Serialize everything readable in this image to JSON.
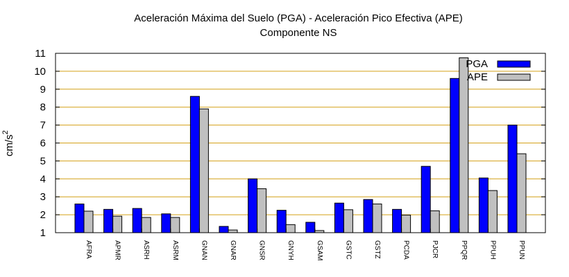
{
  "chart_data": {
    "type": "bar",
    "title": "Aceleración Máxima del Suelo (PGA) -  Aceleración Pico Efectiva (APE)",
    "subtitle": "Componente NS",
    "xlabel": "",
    "ylabel": "cm/s",
    "ylabel_superscript": "2",
    "ylim": [
      1,
      11
    ],
    "yticks": [
      "1",
      "2",
      "3",
      "4",
      "5",
      "6",
      "7",
      "8",
      "9",
      "10",
      "11"
    ],
    "grid": true,
    "legend_position": "top-right",
    "categories": [
      "AFRA",
      "APMR",
      "ASRH",
      "ASRM",
      "GNAN",
      "GNAR",
      "GNSR",
      "GNYH",
      "GSAM",
      "GSTC",
      "GSTZ",
      "PCDA",
      "PJCR",
      "PPQR",
      "PPUH",
      "PPUN"
    ],
    "series": [
      {
        "name": "PGA",
        "color": "#0000ff",
        "values": [
          2.6,
          2.3,
          2.35,
          2.05,
          8.6,
          1.35,
          4.0,
          2.25,
          1.58,
          2.65,
          2.85,
          2.3,
          4.7,
          9.6,
          4.05,
          7.0
        ]
      },
      {
        "name": "APE",
        "color": "#c0c0c0",
        "values": [
          2.2,
          1.92,
          1.85,
          1.85,
          7.9,
          1.15,
          3.45,
          1.45,
          1.12,
          2.28,
          2.6,
          1.98,
          2.22,
          10.75,
          3.35,
          5.4
        ]
      }
    ],
    "grid_color": "#d4a017"
  }
}
